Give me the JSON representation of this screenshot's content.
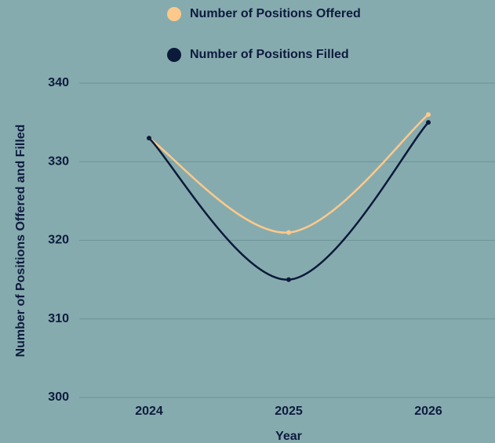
{
  "chart_data": {
    "type": "line",
    "y_axis_label": "Number of Positions Offered and Filled",
    "x_axis_label": "Year",
    "categories": [
      "2024",
      "2025",
      "2026"
    ],
    "series": [
      {
        "name": "Number of Positions Offered",
        "color": "#fdc98b",
        "values": [
          333,
          321,
          336
        ]
      },
      {
        "name": "Number of Positions Filled",
        "color": "#0b1a3a",
        "values": [
          333,
          315,
          335
        ]
      }
    ],
    "ylim": [
      300,
      340
    ],
    "yticks": [
      300,
      310,
      320,
      330,
      340
    ],
    "grid": true,
    "legend": "top"
  }
}
